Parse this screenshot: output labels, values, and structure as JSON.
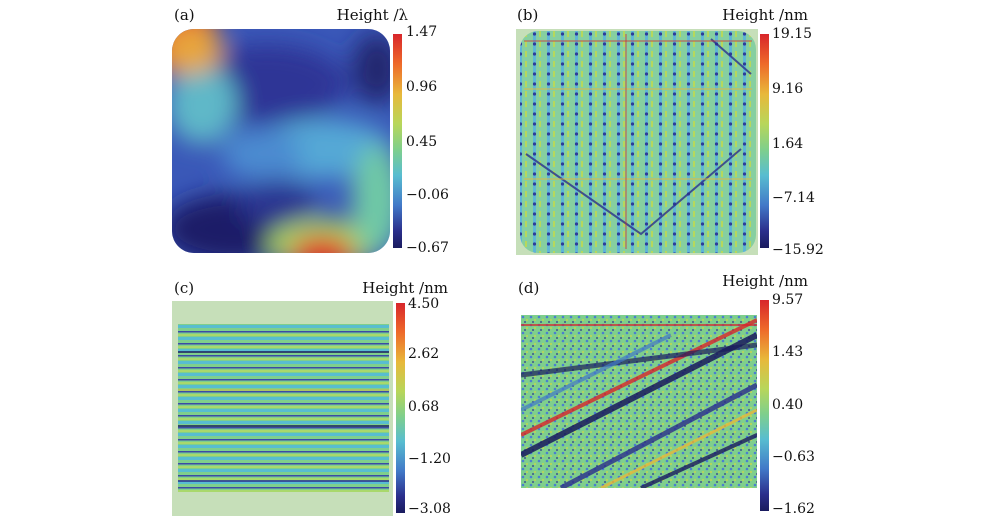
{
  "panels": [
    {
      "label": "(a)",
      "unit": "Height /λ",
      "ticks": [
        "1.47",
        "0.96",
        "0.45",
        "−0.06",
        "−0.67"
      ]
    },
    {
      "label": "(b)",
      "unit": "Height /nm",
      "ticks": [
        "19.15",
        "9.16",
        "1.64",
        "−7.14",
        "−15.92"
      ]
    },
    {
      "label": "(c)",
      "unit": "Height /nm",
      "ticks": [
        "4.50",
        "2.62",
        "0.68",
        "−1.20",
        "−3.08"
      ]
    },
    {
      "label": "(d)",
      "unit": "Height /nm",
      "ticks": [
        "9.57",
        "1.43",
        "0.40",
        "−0.63",
        "−1.62"
      ]
    }
  ],
  "colors": {
    "high": "#d8262b",
    "mid": "#7fcf8c",
    "low": "#1a1b5e",
    "frame": "#c6dfb9"
  }
}
